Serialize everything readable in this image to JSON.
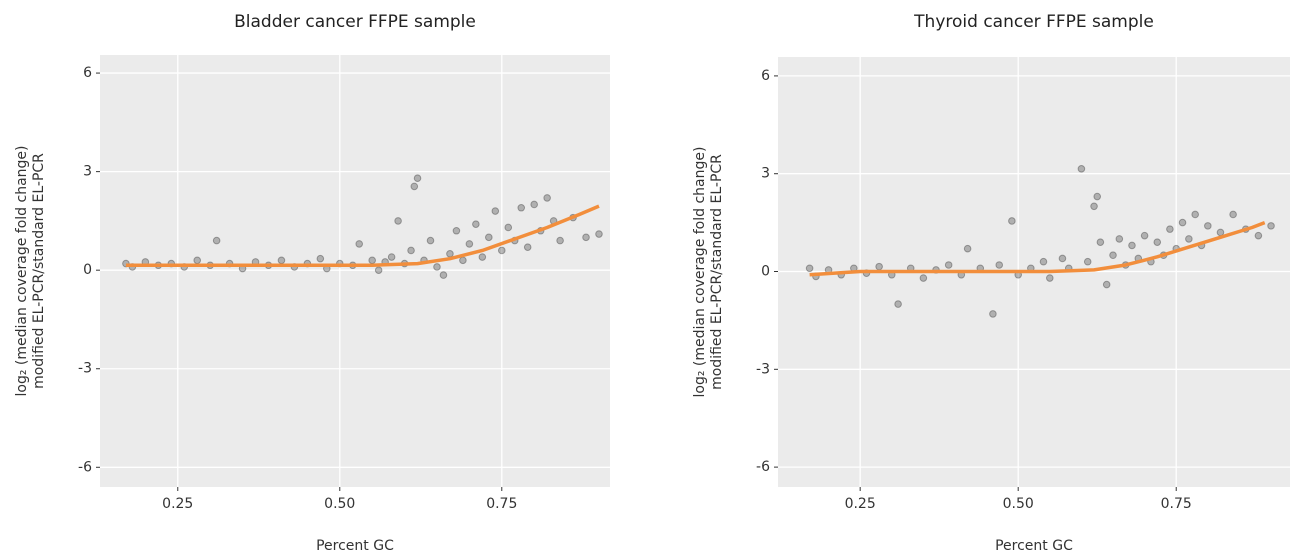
{
  "chart_data": [
    {
      "type": "scatter",
      "title": "Bladder cancer FFPE sample",
      "xlabel": "Percent GC",
      "ylabel": [
        "log₂ (median coverage fold change)",
        "modified EL-PCR/standard EL-PCR"
      ],
      "xlim": [
        0.13,
        0.917
      ],
      "ylim": [
        -6.6,
        6.55
      ],
      "xticks": [
        0.25,
        {
          "value": 0.5,
          "label": "0.50"
        },
        0.75
      ],
      "yticks": [
        -6,
        -3,
        0,
        3,
        6
      ],
      "grid": true,
      "point_color": "#000000",
      "x": [
        0.17,
        0.18,
        0.2,
        0.22,
        0.24,
        0.26,
        0.28,
        0.3,
        0.31,
        0.33,
        0.35,
        0.37,
        0.39,
        0.41,
        0.43,
        0.45,
        0.47,
        0.48,
        0.5,
        0.52,
        0.53,
        0.55,
        0.56,
        0.57,
        0.58,
        0.59,
        0.6,
        0.61,
        0.615,
        0.62,
        0.63,
        0.64,
        0.65,
        0.66,
        0.67,
        0.68,
        0.69,
        0.7,
        0.71,
        0.72,
        0.73,
        0.74,
        0.75,
        0.76,
        0.77,
        0.78,
        0.79,
        0.8,
        0.81,
        0.82,
        0.83,
        0.84,
        0.86,
        0.88,
        0.9
      ],
      "values": [
        0.2,
        0.1,
        0.25,
        0.15,
        0.2,
        0.1,
        0.3,
        0.15,
        0.9,
        0.2,
        0.05,
        0.25,
        0.15,
        0.3,
        0.1,
        0.2,
        0.35,
        0.05,
        0.2,
        0.15,
        0.8,
        0.3,
        0.0,
        0.25,
        0.4,
        1.5,
        0.2,
        0.6,
        2.55,
        2.8,
        0.3,
        0.9,
        0.1,
        -0.15,
        0.5,
        1.2,
        0.3,
        0.8,
        1.4,
        0.4,
        1.0,
        1.8,
        0.6,
        1.3,
        0.9,
        1.9,
        0.7,
        2.0,
        1.2,
        2.2,
        1.5,
        0.9,
        1.6,
        1.0,
        1.1
      ],
      "trend": {
        "color": "#f28e3c",
        "x": [
          0.17,
          0.25,
          0.35,
          0.45,
          0.55,
          0.62,
          0.67,
          0.72,
          0.77,
          0.82,
          0.87,
          0.9
        ],
        "values": [
          0.15,
          0.15,
          0.15,
          0.15,
          0.15,
          0.2,
          0.35,
          0.6,
          0.95,
          1.3,
          1.7,
          1.95
        ]
      }
    },
    {
      "type": "scatter",
      "title": "Thyroid cancer FFPE sample",
      "xlabel": "Percent GC",
      "ylabel": [
        "log₂ (median coverage fold change)",
        "modified EL-PCR/standard EL-PCR"
      ],
      "xlim": [
        0.12,
        0.93
      ],
      "ylim": [
        -6.61,
        6.58
      ],
      "xticks": [
        0.25,
        {
          "value": 0.5,
          "label": "0.50"
        },
        0.75
      ],
      "yticks": [
        -6,
        -3,
        0,
        3,
        6
      ],
      "grid": true,
      "point_color": "#000000",
      "x": [
        0.17,
        0.18,
        0.2,
        0.22,
        0.24,
        0.26,
        0.28,
        0.3,
        0.31,
        0.33,
        0.35,
        0.37,
        0.39,
        0.41,
        0.42,
        0.44,
        0.46,
        0.47,
        0.49,
        0.5,
        0.52,
        0.54,
        0.55,
        0.57,
        0.58,
        0.6,
        0.61,
        0.62,
        0.625,
        0.63,
        0.64,
        0.65,
        0.66,
        0.67,
        0.68,
        0.69,
        0.7,
        0.71,
        0.72,
        0.73,
        0.74,
        0.75,
        0.76,
        0.77,
        0.78,
        0.79,
        0.8,
        0.82,
        0.84,
        0.86,
        0.88,
        0.9
      ],
      "values": [
        0.1,
        -0.15,
        0.05,
        -0.1,
        0.1,
        -0.05,
        0.15,
        -0.1,
        -1.0,
        0.1,
        -0.2,
        0.05,
        0.2,
        -0.1,
        0.7,
        0.1,
        -1.3,
        0.2,
        1.55,
        -0.1,
        0.1,
        0.3,
        -0.2,
        0.4,
        0.1,
        3.15,
        0.3,
        2.0,
        2.3,
        0.9,
        -0.4,
        0.5,
        1.0,
        0.2,
        0.8,
        0.4,
        1.1,
        0.3,
        0.9,
        0.5,
        1.3,
        0.7,
        1.5,
        1.0,
        1.75,
        0.8,
        1.4,
        1.2,
        1.75,
        1.3,
        1.1,
        1.4
      ],
      "trend": {
        "color": "#f28e3c",
        "x": [
          0.17,
          0.25,
          0.35,
          0.45,
          0.55,
          0.62,
          0.67,
          0.72,
          0.77,
          0.82,
          0.87,
          0.89
        ],
        "values": [
          -0.1,
          0,
          0,
          0,
          0,
          0.05,
          0.2,
          0.45,
          0.75,
          1.05,
          1.35,
          1.5
        ]
      }
    }
  ]
}
